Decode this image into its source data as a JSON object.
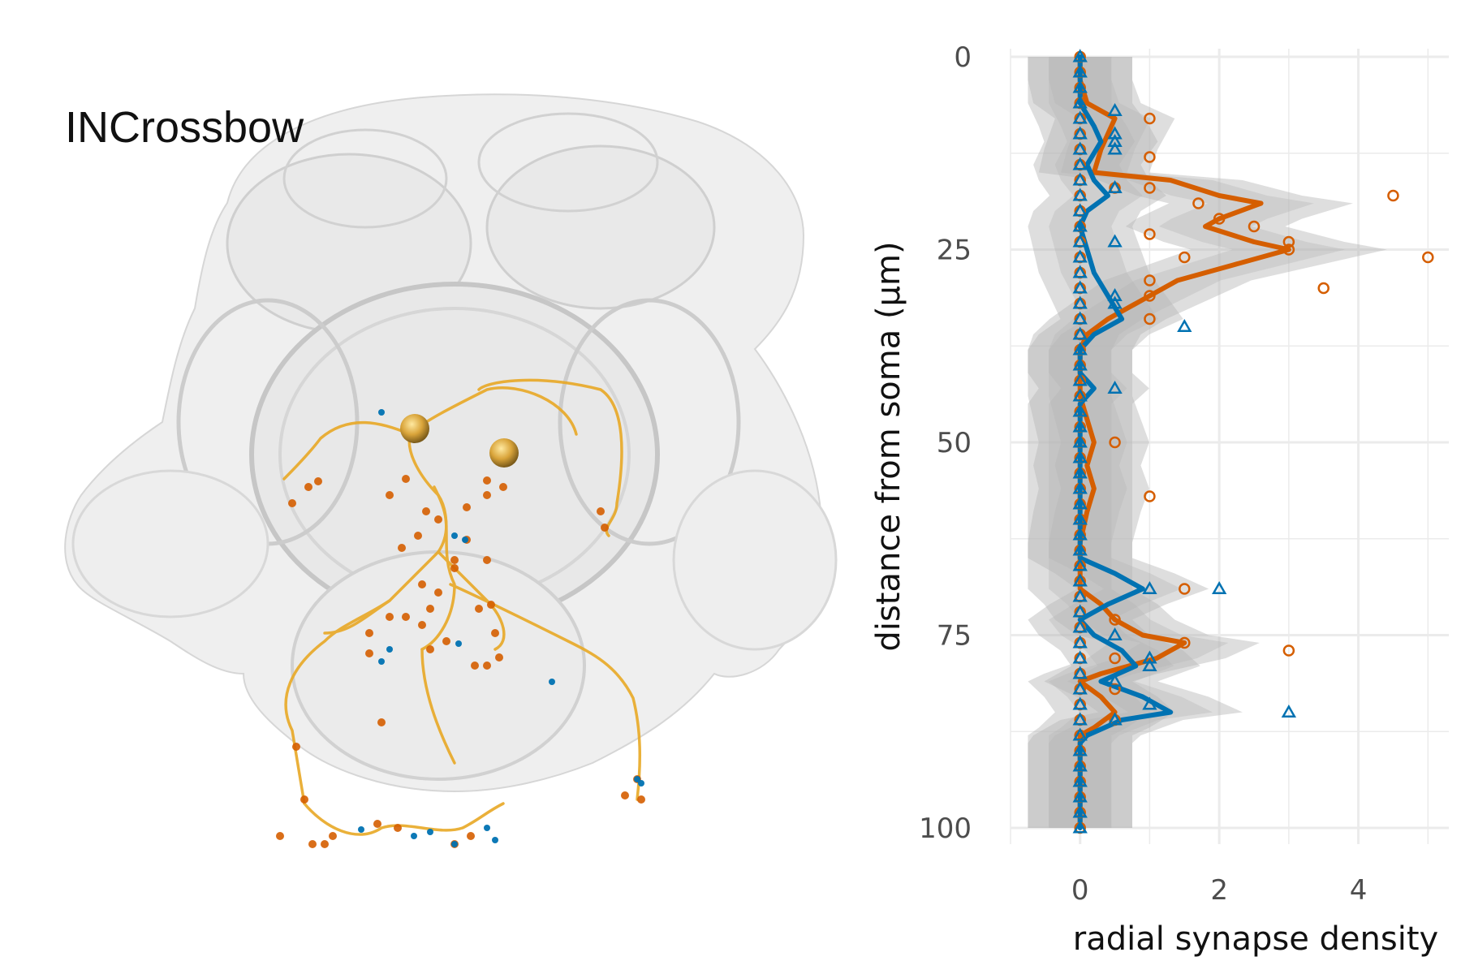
{
  "figure": {
    "cell_name": "INCrossbow"
  },
  "colors": {
    "presynapse": "#d55e00",
    "postsynapse": "#0072b2",
    "neuron": "#e8a825",
    "soma": "#c8961e",
    "mesh": "#c8c8c8",
    "ribbon": "#b5b5b5",
    "grid": "#ebebeb"
  },
  "chart_data": {
    "type": "line",
    "xlabel": "radial synapse density",
    "ylabel": "distance from soma (µm)",
    "xlim": [
      -1,
      5.3
    ],
    "ylim": [
      0,
      100
    ],
    "y_reversed": true,
    "x_ticks": [
      0,
      2,
      4
    ],
    "y_ticks": [
      0,
      25,
      50,
      75,
      100
    ],
    "grid": true,
    "legend": "none",
    "series": [
      {
        "marker": "circle",
        "color": "#d55e00",
        "line": [
          [
            0,
            0
          ],
          [
            0,
            3
          ],
          [
            0.1,
            6
          ],
          [
            0.5,
            8
          ],
          [
            0.3,
            12
          ],
          [
            0.2,
            15
          ],
          [
            1.3,
            16
          ],
          [
            2.0,
            18
          ],
          [
            2.6,
            19
          ],
          [
            2.0,
            21
          ],
          [
            1.8,
            22
          ],
          [
            2.5,
            24
          ],
          [
            3.0,
            25
          ],
          [
            2.2,
            27
          ],
          [
            1.4,
            29
          ],
          [
            1.0,
            31
          ],
          [
            0.4,
            34
          ],
          [
            0.1,
            36
          ],
          [
            0,
            38
          ],
          [
            0,
            44
          ],
          [
            0.1,
            47
          ],
          [
            0.2,
            50
          ],
          [
            0.1,
            53
          ],
          [
            0.2,
            56
          ],
          [
            0.1,
            59
          ],
          [
            0,
            63
          ],
          [
            0,
            69
          ],
          [
            0.3,
            71
          ],
          [
            0.5,
            73
          ],
          [
            0.9,
            75
          ],
          [
            1.5,
            76
          ],
          [
            1.1,
            78
          ],
          [
            0.3,
            80
          ],
          [
            0,
            81
          ],
          [
            0.3,
            83
          ],
          [
            0.5,
            85
          ],
          [
            0.2,
            87
          ],
          [
            0,
            88
          ],
          [
            0,
            100
          ]
        ],
        "points": [
          [
            0,
            0
          ],
          [
            0,
            2
          ],
          [
            0,
            4
          ],
          [
            0,
            6
          ],
          [
            0,
            8
          ],
          [
            0,
            10
          ],
          [
            0,
            12
          ],
          [
            0,
            14
          ],
          [
            0,
            16
          ],
          [
            0,
            18
          ],
          [
            0,
            20
          ],
          [
            0,
            22
          ],
          [
            0,
            24
          ],
          [
            0,
            26
          ],
          [
            0,
            28
          ],
          [
            0,
            30
          ],
          [
            0,
            32
          ],
          [
            0,
            34
          ],
          [
            0,
            36
          ],
          [
            0,
            38
          ],
          [
            0,
            40
          ],
          [
            0,
            42
          ],
          [
            0,
            44
          ],
          [
            0,
            46
          ],
          [
            0,
            48
          ],
          [
            0,
            50
          ],
          [
            0,
            52
          ],
          [
            0,
            54
          ],
          [
            0,
            56
          ],
          [
            0,
            58
          ],
          [
            0,
            60
          ],
          [
            0,
            62
          ],
          [
            0,
            64
          ],
          [
            0,
            66
          ],
          [
            0,
            68
          ],
          [
            0,
            70
          ],
          [
            0,
            72
          ],
          [
            0,
            74
          ],
          [
            0,
            76
          ],
          [
            0,
            78
          ],
          [
            0,
            80
          ],
          [
            0,
            82
          ],
          [
            0,
            84
          ],
          [
            0,
            86
          ],
          [
            0,
            88
          ],
          [
            0,
            90
          ],
          [
            0,
            92
          ],
          [
            0,
            94
          ],
          [
            0,
            96
          ],
          [
            0,
            98
          ],
          [
            0,
            100
          ],
          [
            1,
            8
          ],
          [
            1,
            13
          ],
          [
            0.5,
            17
          ],
          [
            1,
            17
          ],
          [
            1.7,
            19
          ],
          [
            2.5,
            22
          ],
          [
            2,
            21
          ],
          [
            1,
            23
          ],
          [
            3,
            24
          ],
          [
            3,
            25
          ],
          [
            4.5,
            18
          ],
          [
            5,
            26
          ],
          [
            1.5,
            26
          ],
          [
            1,
            29
          ],
          [
            1,
            31
          ],
          [
            3.5,
            30
          ],
          [
            1,
            34
          ],
          [
            0.5,
            50
          ],
          [
            1,
            57
          ],
          [
            1.5,
            69
          ],
          [
            0.5,
            73
          ],
          [
            3,
            77
          ],
          [
            1.5,
            76
          ],
          [
            0.5,
            78
          ],
          [
            0.5,
            82
          ],
          [
            0.5,
            86
          ]
        ]
      },
      {
        "marker": "triangle",
        "color": "#0072b2",
        "line": [
          [
            0,
            0
          ],
          [
            0,
            6
          ],
          [
            0.2,
            9
          ],
          [
            0.3,
            11
          ],
          [
            0.1,
            14
          ],
          [
            0.2,
            16
          ],
          [
            0.4,
            18
          ],
          [
            0.1,
            20
          ],
          [
            0,
            22
          ],
          [
            0.1,
            25
          ],
          [
            0.2,
            28
          ],
          [
            0.4,
            31
          ],
          [
            0.6,
            34
          ],
          [
            0.2,
            36
          ],
          [
            0,
            38
          ],
          [
            0,
            41
          ],
          [
            0.2,
            43
          ],
          [
            0,
            45
          ],
          [
            0,
            60
          ],
          [
            0,
            65
          ],
          [
            0.5,
            67
          ],
          [
            0.9,
            69
          ],
          [
            0.4,
            71
          ],
          [
            0,
            73
          ],
          [
            0.2,
            75
          ],
          [
            0.6,
            77
          ],
          [
            0.8,
            79
          ],
          [
            0.3,
            81
          ],
          [
            0.9,
            83
          ],
          [
            1.3,
            85
          ],
          [
            0.6,
            86
          ],
          [
            0.1,
            88
          ],
          [
            0,
            89
          ],
          [
            0,
            100
          ]
        ],
        "points": [
          [
            0,
            0
          ],
          [
            0,
            2
          ],
          [
            0,
            4
          ],
          [
            0,
            6
          ],
          [
            0,
            8
          ],
          [
            0,
            10
          ],
          [
            0,
            12
          ],
          [
            0,
            14
          ],
          [
            0,
            16
          ],
          [
            0,
            18
          ],
          [
            0,
            20
          ],
          [
            0,
            22
          ],
          [
            0,
            24
          ],
          [
            0,
            26
          ],
          [
            0,
            28
          ],
          [
            0,
            30
          ],
          [
            0,
            32
          ],
          [
            0,
            34
          ],
          [
            0,
            36
          ],
          [
            0,
            38
          ],
          [
            0,
            40
          ],
          [
            0,
            42
          ],
          [
            0,
            44
          ],
          [
            0,
            46
          ],
          [
            0,
            48
          ],
          [
            0,
            50
          ],
          [
            0,
            52
          ],
          [
            0,
            54
          ],
          [
            0,
            56
          ],
          [
            0,
            58
          ],
          [
            0,
            60
          ],
          [
            0,
            62
          ],
          [
            0,
            64
          ],
          [
            0,
            66
          ],
          [
            0,
            68
          ],
          [
            0,
            70
          ],
          [
            0,
            72
          ],
          [
            0,
            74
          ],
          [
            0,
            76
          ],
          [
            0,
            78
          ],
          [
            0,
            80
          ],
          [
            0,
            82
          ],
          [
            0,
            84
          ],
          [
            0,
            86
          ],
          [
            0,
            88
          ],
          [
            0,
            90
          ],
          [
            0,
            92
          ],
          [
            0,
            94
          ],
          [
            0,
            96
          ],
          [
            0,
            98
          ],
          [
            0,
            100
          ],
          [
            0.5,
            7
          ],
          [
            0.5,
            10
          ],
          [
            0.5,
            11
          ],
          [
            0.5,
            12
          ],
          [
            0.5,
            17
          ],
          [
            0.5,
            24
          ],
          [
            0.5,
            31
          ],
          [
            0.5,
            32
          ],
          [
            1.5,
            35
          ],
          [
            0.5,
            43
          ],
          [
            1,
            69
          ],
          [
            2,
            69
          ],
          [
            0.5,
            75
          ],
          [
            1,
            78
          ],
          [
            1,
            79
          ],
          [
            0.5,
            81
          ],
          [
            1,
            84
          ],
          [
            3,
            85
          ],
          [
            0.5,
            86
          ]
        ]
      }
    ]
  }
}
